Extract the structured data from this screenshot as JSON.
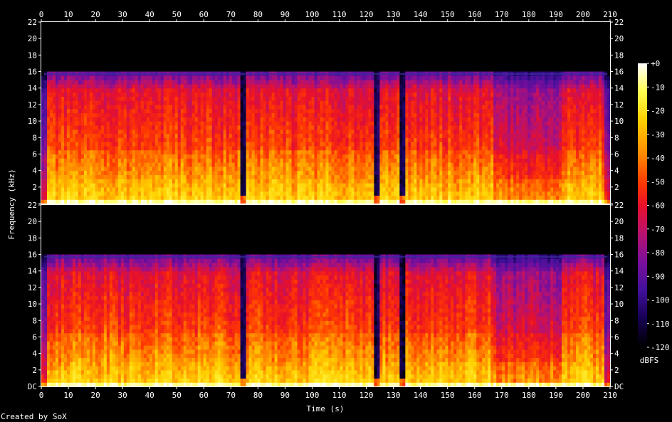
{
  "chart_data": {
    "type": "heatmap",
    "title": "",
    "xlabel": "Time (s)",
    "ylabel": "Frequency (kHz)",
    "credit": "Created by SoX",
    "x_ticks": [
      "0",
      "10",
      "20",
      "30",
      "40",
      "50",
      "60",
      "70",
      "80",
      "90",
      "100",
      "110",
      "120",
      "130",
      "140",
      "150",
      "160",
      "170",
      "180",
      "190",
      "200",
      "210"
    ],
    "xlim": [
      0,
      210
    ],
    "y_ticks": [
      "DC",
      "2",
      "4",
      "6",
      "8",
      "10",
      "12",
      "14",
      "16",
      "18",
      "20",
      "22"
    ],
    "ylim": [
      0,
      22
    ],
    "channels": 2,
    "colorbar": {
      "label": "dBFS",
      "ticks": [
        "+0",
        "-10",
        "-20",
        "-30",
        "-40",
        "-50",
        "-60",
        "-70",
        "-80",
        "-90",
        "-100",
        "-110",
        "-120"
      ],
      "range": [
        -120,
        0
      ]
    },
    "series": [
      {
        "name": "",
        "cutoff_khz": 15.7,
        "breaks_s": [
          74.5,
          124,
          133.5
        ],
        "fade_start_s": 166,
        "low_energy_region_s": [
          166,
          192
        ]
      }
    ],
    "colors": {
      "background": "#000000",
      "axis": "#ffffff",
      "palette": [
        "#000000",
        "#1a0040",
        "#3a007a",
        "#7a0f9c",
        "#b3127a",
        "#e01e37",
        "#ff3300",
        "#ff7a00",
        "#ffc000",
        "#ffff40",
        "#ffffff"
      ]
    }
  }
}
